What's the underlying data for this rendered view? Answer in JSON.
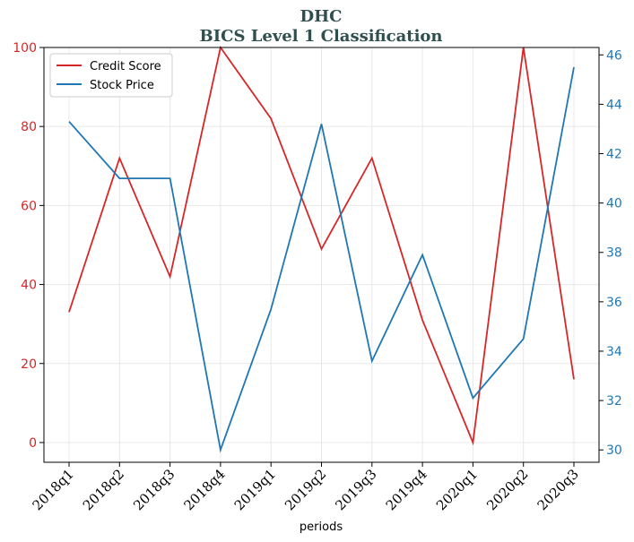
{
  "chart_data": {
    "type": "line",
    "title": "DHC",
    "subtitle": "BICS Level 1 Classification",
    "xlabel": "periods",
    "categories": [
      "2018q1",
      "2018q2",
      "2018q3",
      "2018q4",
      "2019q1",
      "2019q2",
      "2019q3",
      "2019q4",
      "2020q1",
      "2020q2",
      "2020q3"
    ],
    "y_left_ticks": [
      "0",
      "20",
      "40",
      "60",
      "80",
      "100"
    ],
    "y_right_ticks": [
      "30",
      "32",
      "34",
      "36",
      "38",
      "40",
      "42",
      "44",
      "46"
    ],
    "ylim_left": [
      -5,
      100
    ],
    "ylim_right": [
      29.5,
      46.3
    ],
    "grid": true,
    "legend_position": "top-left",
    "series": [
      {
        "name": "Credit Score",
        "axis": "left",
        "color": "#d62728",
        "values": [
          33,
          72,
          42,
          100,
          82,
          49,
          72,
          31,
          0,
          100,
          16
        ]
      },
      {
        "name": "Stock Price",
        "axis": "right",
        "color": "#1f77b4",
        "values": [
          43.3,
          41.0,
          41.0,
          30.0,
          35.7,
          43.2,
          33.6,
          37.9,
          32.1,
          34.5,
          45.5
        ]
      }
    ]
  }
}
